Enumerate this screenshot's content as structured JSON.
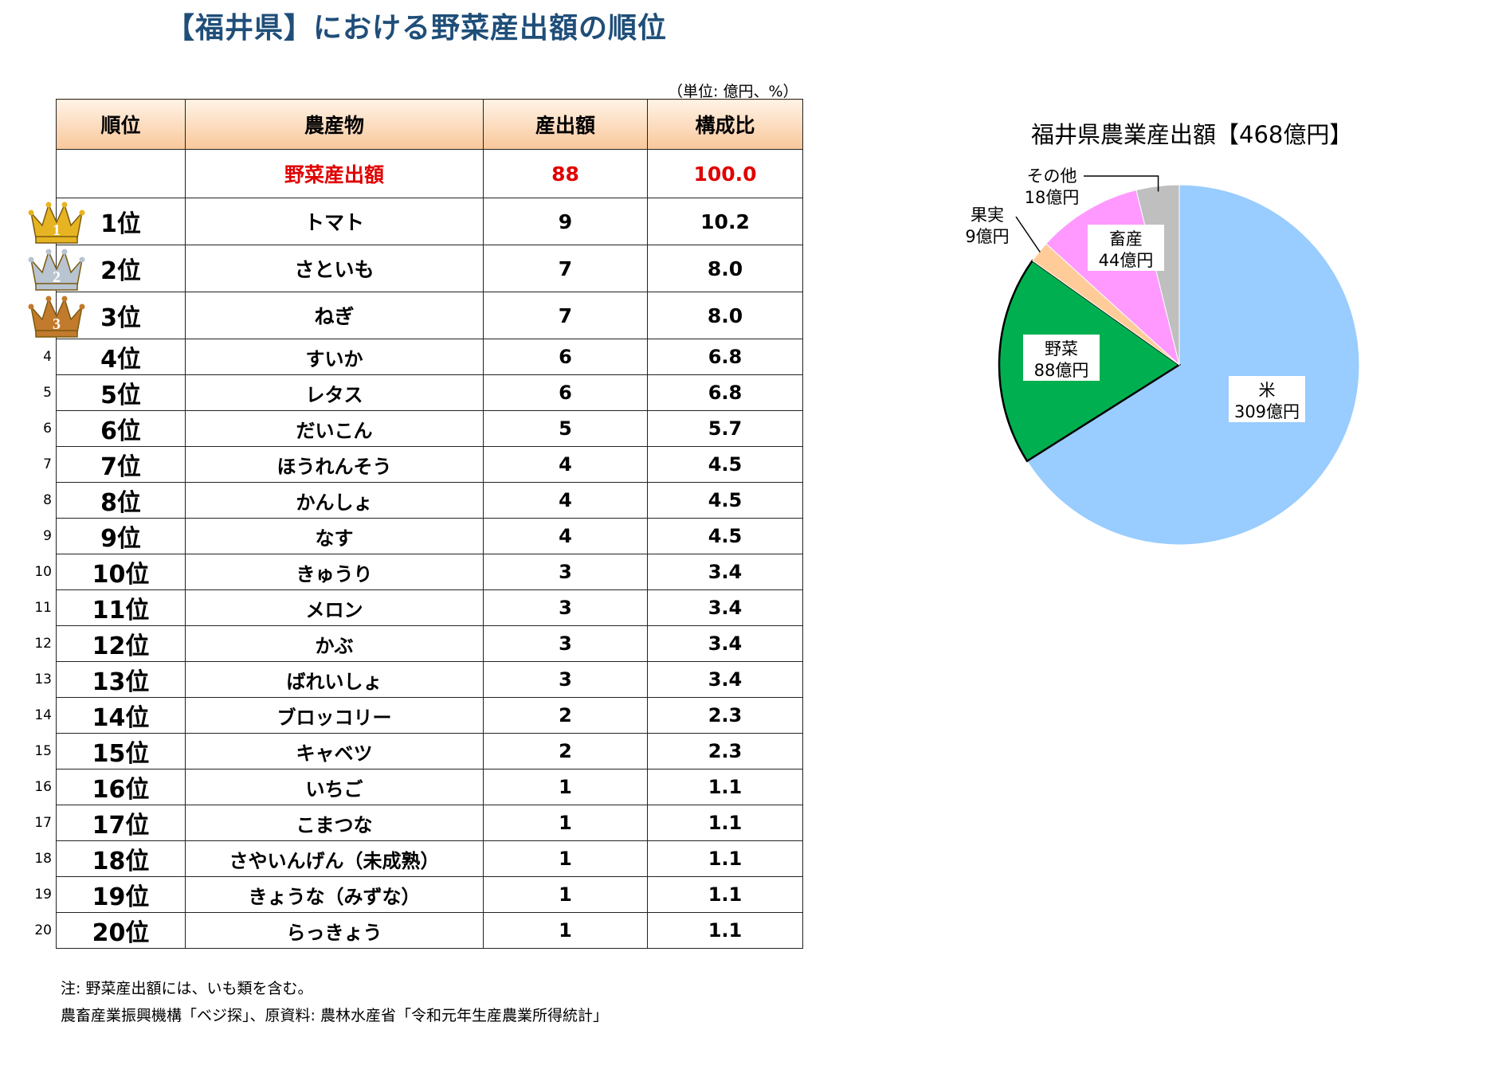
{
  "title": "【福井県】における野菜産出額の順位",
  "unit_note": "（単位: 億円、%）",
  "table": {
    "headers": [
      "順位",
      "農産物",
      "産出額",
      "構成比"
    ],
    "total": {
      "name": "野菜産出額",
      "value": "88",
      "share": "100.0"
    },
    "rows": [
      {
        "num": "",
        "rank": "1位",
        "crop": "トマト",
        "value": "9",
        "share": "10.2"
      },
      {
        "num": "",
        "rank": "2位",
        "crop": "さといも",
        "value": "7",
        "share": "8.0"
      },
      {
        "num": "",
        "rank": "3位",
        "crop": "ねぎ",
        "value": "7",
        "share": "8.0"
      },
      {
        "num": "4",
        "rank": "4位",
        "crop": "すいか",
        "value": "6",
        "share": "6.8"
      },
      {
        "num": "5",
        "rank": "5位",
        "crop": "レタス",
        "value": "6",
        "share": "6.8"
      },
      {
        "num": "6",
        "rank": "6位",
        "crop": "だいこん",
        "value": "5",
        "share": "5.7"
      },
      {
        "num": "7",
        "rank": "7位",
        "crop": "ほうれんそう",
        "value": "4",
        "share": "4.5"
      },
      {
        "num": "8",
        "rank": "8位",
        "crop": "かんしょ",
        "value": "4",
        "share": "4.5"
      },
      {
        "num": "9",
        "rank": "9位",
        "crop": "なす",
        "value": "4",
        "share": "4.5"
      },
      {
        "num": "10",
        "rank": "10位",
        "crop": "きゅうり",
        "value": "3",
        "share": "3.4"
      },
      {
        "num": "11",
        "rank": "11位",
        "crop": "メロン",
        "value": "3",
        "share": "3.4"
      },
      {
        "num": "12",
        "rank": "12位",
        "crop": "かぶ",
        "value": "3",
        "share": "3.4"
      },
      {
        "num": "13",
        "rank": "13位",
        "crop": "ばれいしょ",
        "value": "3",
        "share": "3.4"
      },
      {
        "num": "14",
        "rank": "14位",
        "crop": "ブロッコリー",
        "value": "2",
        "share": "2.3"
      },
      {
        "num": "15",
        "rank": "15位",
        "crop": "キャベツ",
        "value": "2",
        "share": "2.3"
      },
      {
        "num": "16",
        "rank": "16位",
        "crop": "いちご",
        "value": "1",
        "share": "1.1"
      },
      {
        "num": "17",
        "rank": "17位",
        "crop": "こまつな",
        "value": "1",
        "share": "1.1"
      },
      {
        "num": "18",
        "rank": "18位",
        "crop": "さやいんげん（未成熟）",
        "value": "1",
        "share": "1.1"
      },
      {
        "num": "19",
        "rank": "19位",
        "crop": "きょうな（みずな）",
        "value": "1",
        "share": "1.1"
      },
      {
        "num": "20",
        "rank": "20位",
        "crop": "らっきょう",
        "value": "1",
        "share": "1.1"
      }
    ],
    "crowns": [
      {
        "label": "1",
        "color": "#e6b422"
      },
      {
        "label": "2",
        "color": "#b8c4d0"
      },
      {
        "label": "3",
        "color": "#c27a2c"
      }
    ]
  },
  "notes": [
    "注: 野菜産出額には、いも類を含む。",
    "農畜産業振興機構「ベジ探」、原資料: 農林水産省「令和元年生産農業所得統計」"
  ],
  "chart_data": {
    "type": "pie",
    "title": "福井県農業産出額【468億円】",
    "unit": "億円",
    "slices": [
      {
        "name": "米",
        "value": 309,
        "label": "309億円",
        "color": "#99ccff"
      },
      {
        "name": "野菜",
        "value": 88,
        "label": "88億円",
        "color": "#00b050"
      },
      {
        "name": "果実",
        "value": 9,
        "label": "9億円",
        "color": "#ffcc99"
      },
      {
        "name": "畜産",
        "value": 44,
        "label": "44億円",
        "color": "#ff99ff"
      },
      {
        "name": "その他",
        "value": 18,
        "label": "18億円",
        "color": "#bfbfbf"
      }
    ]
  }
}
